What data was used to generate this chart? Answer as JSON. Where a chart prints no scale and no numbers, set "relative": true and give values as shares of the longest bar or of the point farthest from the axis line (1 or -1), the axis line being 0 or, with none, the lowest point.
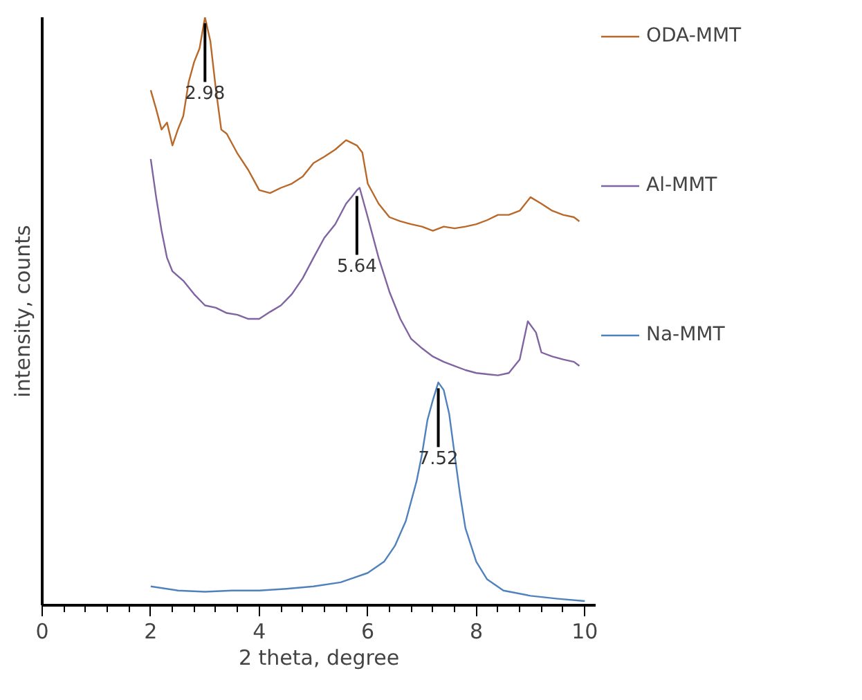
{
  "chart_data": {
    "type": "line",
    "relative": true,
    "xlabel": "2 theta, degree",
    "ylabel": "intensity, counts",
    "xlim": [
      0,
      10.2
    ],
    "xticks": [
      0,
      2,
      4,
      6,
      8,
      10
    ],
    "grid": false,
    "legend": "right",
    "marker": "none",
    "line_style": "solid",
    "annotations": [
      {
        "text": "2.98",
        "x": 3.0,
        "y": 1.0
      },
      {
        "text": "5.64",
        "x": 5.8,
        "y": 0.706
      },
      {
        "text": "7.52",
        "x": 7.3,
        "y": 0.379
      }
    ],
    "series": [
      {
        "name": "ODA-MMT",
        "color": "#b8692a",
        "x": [
          2.0,
          2.1,
          2.2,
          2.3,
          2.4,
          2.5,
          2.6,
          2.7,
          2.8,
          2.9,
          3.0,
          3.1,
          3.2,
          3.3,
          3.4,
          3.6,
          3.8,
          4.0,
          4.2,
          4.4,
          4.6,
          4.8,
          5.0,
          5.2,
          5.4,
          5.6,
          5.8,
          5.9,
          6.0,
          6.2,
          6.4,
          6.6,
          6.8,
          7.0,
          7.2,
          7.4,
          7.6,
          7.8,
          8.0,
          8.2,
          8.4,
          8.6,
          8.8,
          9.0,
          9.2,
          9.4,
          9.6,
          9.8,
          9.9
        ],
        "values": [
          0.876,
          0.844,
          0.809,
          0.821,
          0.782,
          0.809,
          0.832,
          0.89,
          0.924,
          0.947,
          1.0,
          0.959,
          0.878,
          0.809,
          0.802,
          0.768,
          0.74,
          0.706,
          0.701,
          0.71,
          0.717,
          0.729,
          0.752,
          0.763,
          0.775,
          0.791,
          0.782,
          0.77,
          0.717,
          0.683,
          0.66,
          0.653,
          0.648,
          0.644,
          0.637,
          0.644,
          0.641,
          0.644,
          0.648,
          0.655,
          0.664,
          0.664,
          0.671,
          0.694,
          0.683,
          0.671,
          0.664,
          0.66,
          0.653
        ]
      },
      {
        "name": "Al-MMT",
        "color": "#8064a2",
        "x": [
          2.0,
          2.1,
          2.2,
          2.3,
          2.4,
          2.6,
          2.8,
          3.0,
          3.2,
          3.4,
          3.6,
          3.8,
          4.0,
          4.2,
          4.4,
          4.6,
          4.8,
          5.0,
          5.2,
          5.4,
          5.6,
          5.7,
          5.8,
          5.85,
          6.0,
          6.2,
          6.4,
          6.6,
          6.8,
          7.0,
          7.2,
          7.4,
          7.6,
          7.8,
          8.0,
          8.2,
          8.4,
          8.6,
          8.8,
          8.95,
          9.1,
          9.2,
          9.4,
          9.6,
          9.8,
          9.9
        ],
        "values": [
          0.759,
          0.694,
          0.637,
          0.591,
          0.568,
          0.552,
          0.529,
          0.51,
          0.506,
          0.497,
          0.494,
          0.487,
          0.487,
          0.499,
          0.51,
          0.529,
          0.556,
          0.591,
          0.625,
          0.648,
          0.683,
          0.694,
          0.706,
          0.71,
          0.66,
          0.591,
          0.533,
          0.487,
          0.453,
          0.437,
          0.423,
          0.414,
          0.407,
          0.4,
          0.395,
          0.393,
          0.391,
          0.395,
          0.418,
          0.483,
          0.464,
          0.43,
          0.423,
          0.418,
          0.414,
          0.407
        ]
      },
      {
        "name": "Na-MMT",
        "color": "#4f81bd",
        "x": [
          2.0,
          2.5,
          3.0,
          3.5,
          4.0,
          4.5,
          5.0,
          5.5,
          6.0,
          6.3,
          6.5,
          6.7,
          6.9,
          7.0,
          7.1,
          7.2,
          7.3,
          7.4,
          7.5,
          7.6,
          7.7,
          7.8,
          8.0,
          8.2,
          8.5,
          9.0,
          9.5,
          10.0
        ],
        "values": [
          0.032,
          0.025,
          0.023,
          0.025,
          0.025,
          0.028,
          0.032,
          0.039,
          0.055,
          0.074,
          0.101,
          0.143,
          0.211,
          0.257,
          0.315,
          0.349,
          0.379,
          0.366,
          0.326,
          0.257,
          0.189,
          0.131,
          0.074,
          0.044,
          0.025,
          0.016,
          0.011,
          0.007
        ]
      }
    ]
  }
}
